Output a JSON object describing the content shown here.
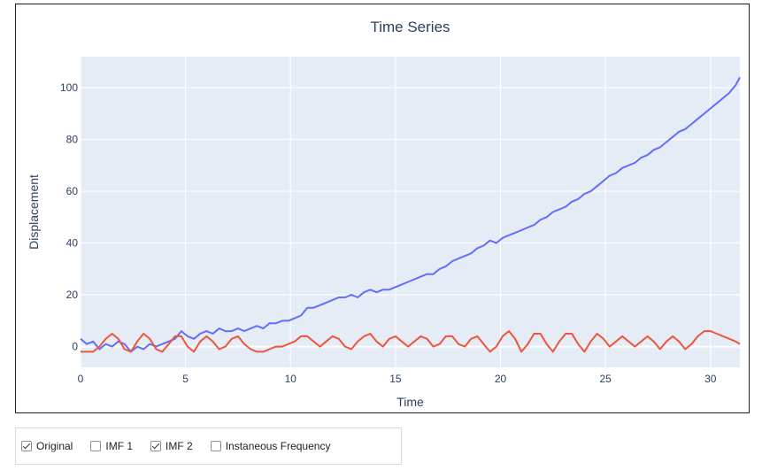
{
  "chart_data": {
    "type": "line",
    "title": "Time Series",
    "xlabel": "Time",
    "ylabel": "Displacement",
    "xlim": [
      0,
      31.4
    ],
    "ylim": [
      -8,
      112
    ],
    "xticks": [
      0,
      5,
      10,
      15,
      20,
      25,
      30
    ],
    "yticks": [
      0,
      20,
      40,
      60,
      80,
      100
    ],
    "grid": true,
    "series": [
      {
        "color": "#636efa",
        "x": [
          0,
          0.3,
          0.6,
          0.9,
          1.2,
          1.5,
          1.8,
          2.1,
          2.4,
          2.7,
          3.0,
          3.3,
          3.6,
          3.9,
          4.2,
          4.5,
          4.8,
          5.1,
          5.4,
          5.7,
          6.0,
          6.3,
          6.6,
          6.9,
          7.2,
          7.5,
          7.8,
          8.1,
          8.4,
          8.7,
          9.0,
          9.3,
          9.6,
          9.9,
          10.2,
          10.5,
          10.8,
          11.1,
          11.4,
          11.7,
          12.0,
          12.3,
          12.6,
          12.9,
          13.2,
          13.5,
          13.8,
          14.1,
          14.4,
          14.7,
          15.0,
          15.3,
          15.6,
          15.9,
          16.2,
          16.5,
          16.8,
          17.1,
          17.4,
          17.7,
          18.0,
          18.3,
          18.6,
          18.9,
          19.2,
          19.5,
          19.8,
          20.1,
          20.4,
          20.7,
          21.0,
          21.3,
          21.6,
          21.9,
          22.2,
          22.5,
          22.8,
          23.1,
          23.4,
          23.7,
          24.0,
          24.3,
          24.6,
          24.9,
          25.2,
          25.5,
          25.8,
          26.1,
          26.4,
          26.7,
          27.0,
          27.3,
          27.6,
          27.9,
          28.2,
          28.5,
          28.8,
          29.1,
          29.4,
          29.7,
          30.0,
          30.3,
          30.6,
          30.9,
          31.2,
          31.4
        ],
        "y": [
          3,
          1,
          2,
          -1,
          1,
          0,
          2,
          1,
          -2,
          0,
          -1,
          1,
          0,
          1,
          2,
          3,
          6,
          4,
          3,
          5,
          6,
          5,
          7,
          6,
          6,
          7,
          6,
          7,
          8,
          7,
          9,
          9,
          10,
          10,
          11,
          12,
          15,
          15,
          16,
          17,
          18,
          19,
          19,
          20,
          19,
          21,
          22,
          21,
          22,
          22,
          23,
          24,
          25,
          26,
          27,
          28,
          28,
          30,
          31,
          33,
          34,
          35,
          36,
          38,
          39,
          41,
          40,
          42,
          43,
          44,
          45,
          46,
          47,
          49,
          50,
          52,
          53,
          54,
          56,
          57,
          59,
          60,
          62,
          64,
          66,
          67,
          69,
          70,
          71,
          73,
          74,
          76,
          77,
          79,
          81,
          83,
          84,
          86,
          88,
          90,
          92,
          94,
          96,
          98,
          101,
          104
        ]
      },
      {
        "color": "#ef553b",
        "x": [
          0,
          0.3,
          0.6,
          0.9,
          1.2,
          1.5,
          1.8,
          2.1,
          2.4,
          2.7,
          3.0,
          3.3,
          3.6,
          3.9,
          4.2,
          4.5,
          4.8,
          5.1,
          5.4,
          5.7,
          6.0,
          6.3,
          6.6,
          6.9,
          7.2,
          7.5,
          7.8,
          8.1,
          8.4,
          8.7,
          9.0,
          9.3,
          9.6,
          9.9,
          10.2,
          10.5,
          10.8,
          11.1,
          11.4,
          11.7,
          12.0,
          12.3,
          12.6,
          12.9,
          13.2,
          13.5,
          13.8,
          14.1,
          14.4,
          14.7,
          15.0,
          15.3,
          15.6,
          15.9,
          16.2,
          16.5,
          16.8,
          17.1,
          17.4,
          17.7,
          18.0,
          18.3,
          18.6,
          18.9,
          19.2,
          19.5,
          19.8,
          20.1,
          20.4,
          20.7,
          21.0,
          21.3,
          21.6,
          21.9,
          22.2,
          22.5,
          22.8,
          23.1,
          23.4,
          23.7,
          24.0,
          24.3,
          24.6,
          24.9,
          25.2,
          25.5,
          25.8,
          26.1,
          26.4,
          26.7,
          27.0,
          27.3,
          27.6,
          27.9,
          28.2,
          28.5,
          28.8,
          29.1,
          29.4,
          29.7,
          30.0,
          30.3,
          30.6,
          30.9,
          31.2,
          31.4
        ],
        "y": [
          -2,
          -2,
          -2,
          0,
          3,
          5,
          3,
          -1,
          -2,
          2,
          5,
          3,
          -1,
          -2,
          1,
          4,
          4,
          0,
          -2,
          2,
          4,
          2,
          -1,
          0,
          3,
          4,
          1,
          -1,
          -2,
          -2,
          -1,
          0,
          0,
          1,
          2,
          4,
          4,
          2,
          0,
          2,
          4,
          3,
          0,
          -1,
          2,
          4,
          5,
          2,
          0,
          3,
          4,
          2,
          0,
          2,
          4,
          3,
          0,
          1,
          4,
          4,
          1,
          0,
          3,
          4,
          1,
          -2,
          0,
          4,
          6,
          3,
          -2,
          1,
          5,
          5,
          1,
          -2,
          2,
          5,
          5,
          1,
          -2,
          2,
          5,
          3,
          0,
          2,
          4,
          2,
          0,
          2,
          4,
          2,
          -1,
          2,
          4,
          2,
          -1,
          1,
          4,
          6,
          6,
          5,
          4,
          3,
          2,
          1
        ]
      }
    ]
  },
  "controls": {
    "items": [
      {
        "label": "Original",
        "checked": true
      },
      {
        "label": "IMF 1",
        "checked": false
      },
      {
        "label": "IMF 2",
        "checked": true
      },
      {
        "label": "Instaneous Frequency",
        "checked": false
      }
    ]
  }
}
